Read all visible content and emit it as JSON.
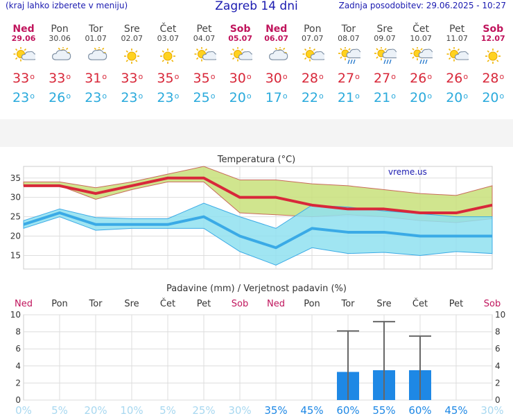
{
  "header": {
    "menu_hint": "(kraj lahko izberete v meniju)",
    "title": "Zagreb 14 dni",
    "updated": "Zadnja posodobitev: 29.06.2025 - 10:27"
  },
  "days": [
    {
      "name": "Ned",
      "date": "29.06",
      "weekend": true,
      "icon": "sun-cloud-icon",
      "max": "33",
      "min": "23"
    },
    {
      "name": "Pon",
      "date": "30.06",
      "weekend": false,
      "icon": "cloudy-icon",
      "max": "33",
      "min": "26"
    },
    {
      "name": "Tor",
      "date": "01.07",
      "weekend": false,
      "icon": "cloudy-icon",
      "max": "31",
      "min": "23"
    },
    {
      "name": "Sre",
      "date": "02.07",
      "weekend": false,
      "icon": "sun-icon",
      "max": "33",
      "min": "23"
    },
    {
      "name": "Čet",
      "date": "03.07",
      "weekend": false,
      "icon": "sun-icon",
      "max": "35",
      "min": "23"
    },
    {
      "name": "Pet",
      "date": "04.07",
      "weekend": false,
      "icon": "sun-cloud-icon",
      "max": "35",
      "min": "25"
    },
    {
      "name": "Sob",
      "date": "05.07",
      "weekend": true,
      "icon": "sun-cloud-icon",
      "max": "30",
      "min": "20"
    },
    {
      "name": "Ned",
      "date": "06.07",
      "weekend": true,
      "icon": "cloudy-icon",
      "max": "30",
      "min": "17"
    },
    {
      "name": "Pon",
      "date": "07.07",
      "weekend": false,
      "icon": "sun-cloud-icon",
      "max": "28",
      "min": "22"
    },
    {
      "name": "Tor",
      "date": "08.07",
      "weekend": false,
      "icon": "sun-rain-icon",
      "max": "27",
      "min": "21"
    },
    {
      "name": "Sre",
      "date": "09.07",
      "weekend": false,
      "icon": "sun-rain-icon",
      "max": "27",
      "min": "21"
    },
    {
      "name": "Čet",
      "date": "10.07",
      "weekend": false,
      "icon": "sun-rain-icon",
      "max": "26",
      "min": "20"
    },
    {
      "name": "Pet",
      "date": "11.07",
      "weekend": false,
      "icon": "sun-cloud-icon",
      "max": "26",
      "min": "20"
    },
    {
      "name": "Sob",
      "date": "12.07",
      "weekend": true,
      "icon": "sun-icon",
      "max": "28",
      "min": "20"
    }
  ],
  "degree_symbol": "o",
  "colors": {
    "header_blue": "#1a1ab0",
    "weekend": "#c0145c",
    "max_line": "#d8283a",
    "min_line": "#3aaae6",
    "max_band": "#c8e07a",
    "min_band": "#8fe0f0",
    "overlap": "#7ecf8a",
    "precip_bar": "#1e88e5",
    "prob_low": "#a8d8f0",
    "prob_high": "#1e88e5"
  },
  "chart_data": [
    {
      "type": "line",
      "title": "Temperatura (°C)",
      "watermark": "vreme.us",
      "yticks": [
        15,
        20,
        25,
        30,
        35
      ],
      "ylim": [
        11.5,
        38
      ],
      "series": [
        {
          "values": [
            33,
            33,
            31,
            33,
            35,
            35,
            30,
            30,
            28,
            27,
            27,
            26,
            26,
            28
          ]
        },
        {
          "values": [
            23,
            26,
            23,
            23,
            23,
            25,
            20,
            17,
            22,
            21,
            21,
            20,
            20,
            20
          ]
        }
      ],
      "max_range_high": [
        34,
        34,
        32.5,
        34,
        36,
        38,
        34.5,
        34.5,
        33.5,
        33,
        32,
        31,
        30.5,
        33
      ],
      "max_range_low": [
        33,
        33,
        29.5,
        32,
        34,
        34,
        26,
        25.5,
        25,
        25.5,
        25,
        24,
        23.5,
        24.5
      ],
      "min_range_high": [
        24,
        27,
        24.8,
        24.5,
        24.5,
        28.5,
        25,
        22,
        28,
        27.5,
        26.5,
        25.8,
        25,
        25
      ],
      "min_range_low": [
        22,
        25,
        21.5,
        22,
        22,
        22,
        16,
        12.5,
        17,
        15.5,
        15.8,
        15,
        16,
        15.5
      ]
    },
    {
      "type": "bar",
      "title": "Padavine (mm) / Verjetnost padavin (%)",
      "categories": [
        "Ned",
        "Pon",
        "Tor",
        "Sre",
        "Čet",
        "Pet",
        "Sob",
        "Ned",
        "Pon",
        "Tor",
        "Sre",
        "Čet",
        "Pet",
        "Sob"
      ],
      "weekend": [
        true,
        false,
        false,
        false,
        false,
        false,
        true,
        true,
        false,
        false,
        false,
        false,
        false,
        true
      ],
      "yticks": [
        0,
        2,
        4,
        6,
        8,
        10
      ],
      "ylim": [
        0,
        10
      ],
      "values": [
        0,
        0,
        0,
        0,
        0,
        0,
        0,
        0,
        0,
        3.3,
        3.5,
        3.5,
        0,
        0
      ],
      "error_high": [
        null,
        null,
        null,
        null,
        null,
        null,
        null,
        null,
        null,
        8.1,
        9.2,
        7.5,
        null,
        null
      ],
      "probability": [
        "0%",
        "5%",
        "20%",
        "10%",
        "5%",
        "25%",
        "30%",
        "35%",
        "45%",
        "60%",
        "55%",
        "60%",
        "45%",
        "30%"
      ]
    }
  ]
}
